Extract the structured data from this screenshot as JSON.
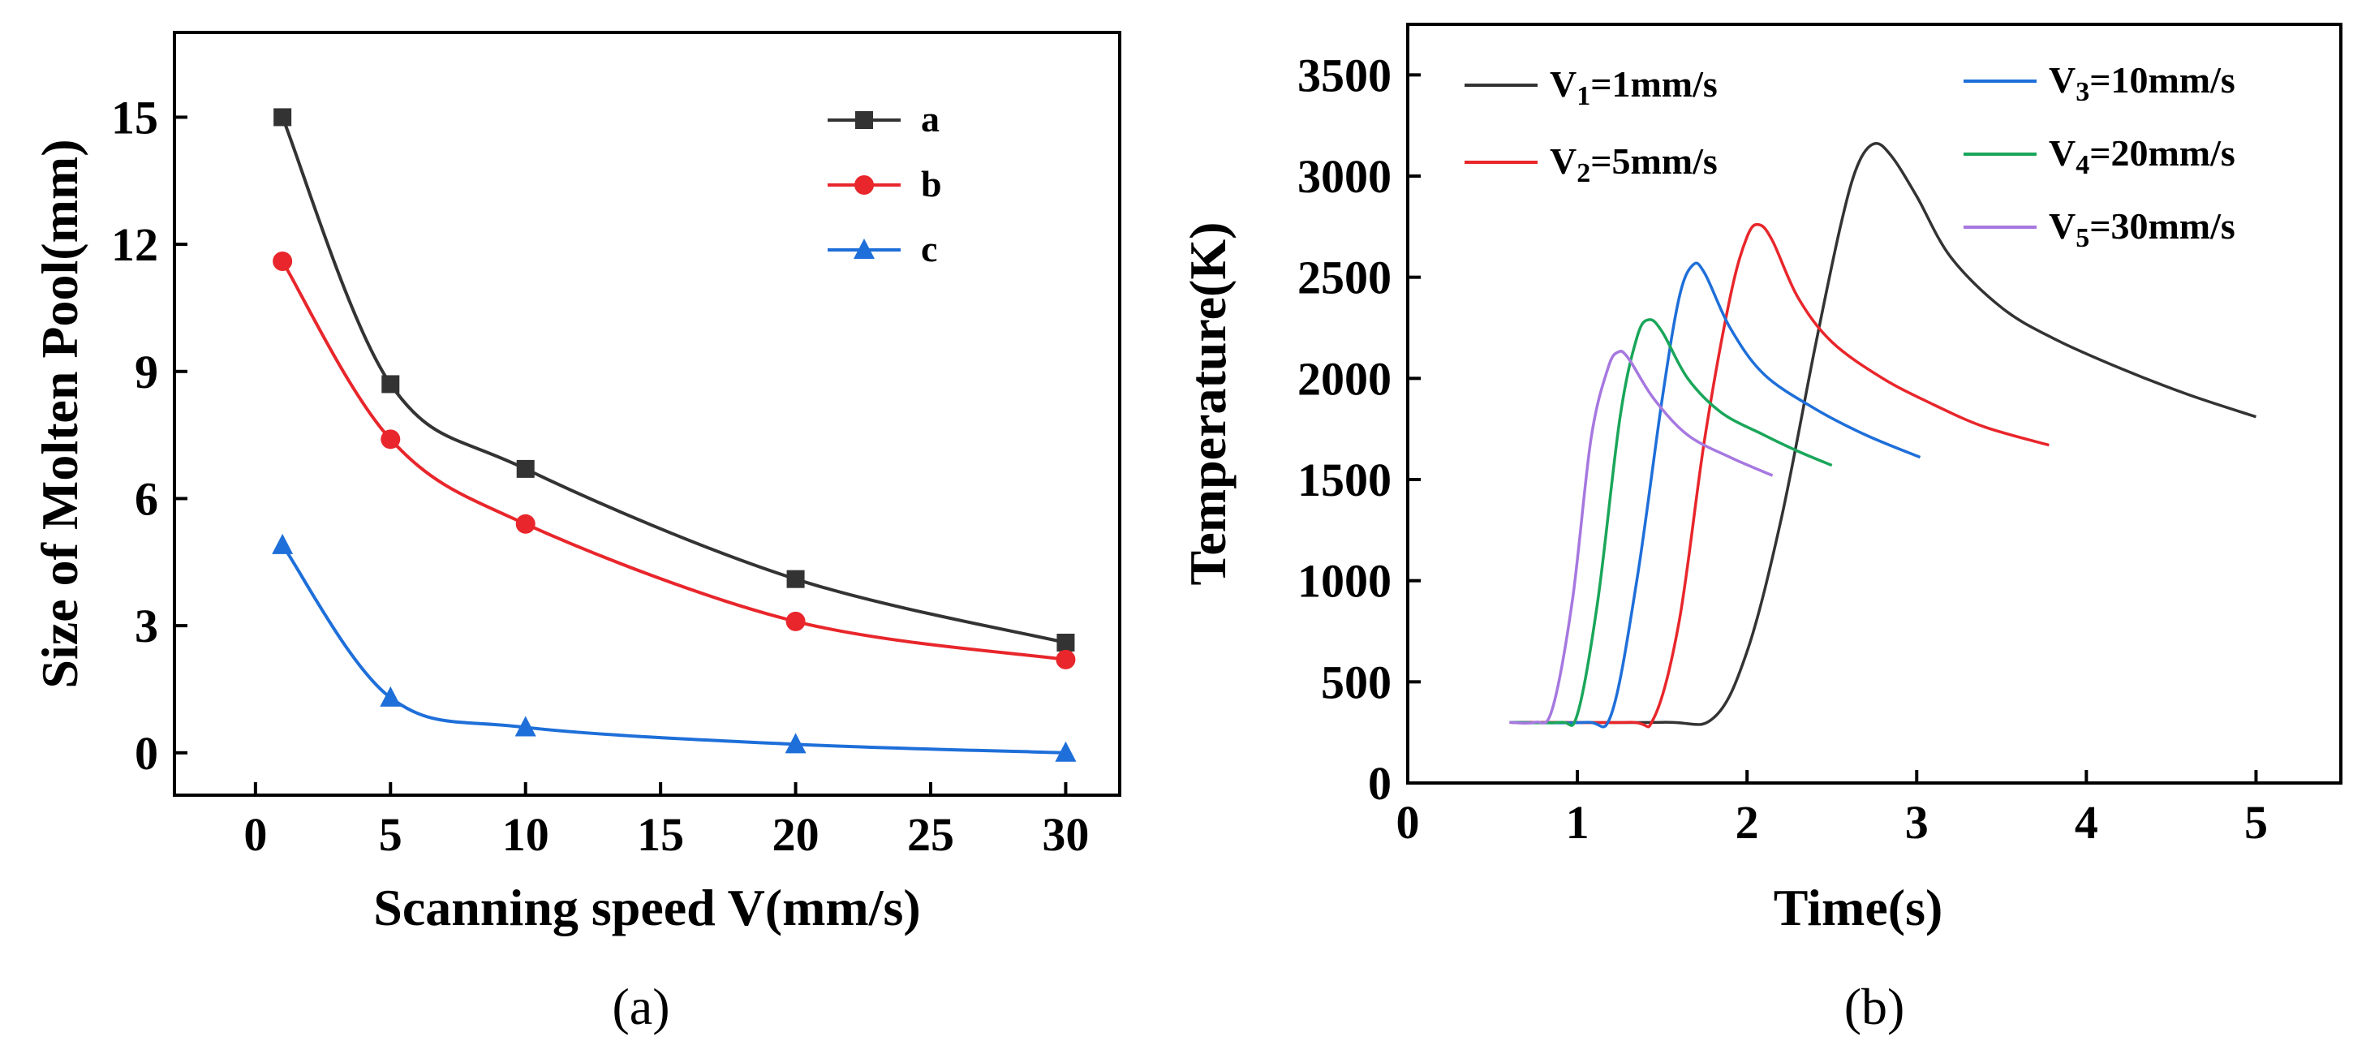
{
  "chart_data": [
    {
      "type": "line",
      "panel_label": "(a)",
      "xlabel": "Scanning speed  V(mm/s)",
      "ylabel": "Size of Molten Pool(mm)",
      "xlim": [
        -3,
        32
      ],
      "ylim": [
        -1,
        17
      ],
      "x_ticks": [
        0,
        5,
        10,
        15,
        20,
        25,
        30
      ],
      "y_ticks": [
        0,
        3,
        6,
        9,
        12,
        15
      ],
      "legend_position": "top-right",
      "grid": false,
      "x": [
        1,
        5,
        10,
        20,
        30
      ],
      "series": [
        {
          "name": "a",
          "color": "#333333",
          "marker": "square",
          "values": [
            15.0,
            8.7,
            6.7,
            4.1,
            2.6
          ]
        },
        {
          "name": "b",
          "color": "#e8262b",
          "marker": "circle",
          "values": [
            11.6,
            7.4,
            5.4,
            3.1,
            2.2
          ]
        },
        {
          "name": "c",
          "color": "#1e6fd9",
          "marker": "triangle",
          "values": [
            4.9,
            1.3,
            0.6,
            0.2,
            0.0
          ]
        }
      ]
    },
    {
      "type": "line",
      "panel_label": "(b)",
      "xlabel": "Time(s)",
      "ylabel": "Temperature(K)",
      "xlim": [
        0,
        5.5
      ],
      "ylim": [
        0,
        3750
      ],
      "x_ticks": [
        0,
        1,
        2,
        3,
        4,
        5
      ],
      "y_ticks": [
        0,
        500,
        1000,
        1500,
        2000,
        2500,
        3000,
        3500
      ],
      "legend_position": "top",
      "grid": false,
      "series": [
        {
          "name": "V1=1mm/s",
          "name_base": "V",
          "name_sub": "1",
          "name_rest": "=1mm/s",
          "color": "#333333",
          "points": [
            [
              0.6,
              300
            ],
            [
              1.5,
              300
            ],
            [
              1.8,
              320
            ],
            [
              2.0,
              650
            ],
            [
              2.2,
              1300
            ],
            [
              2.4,
              2150
            ],
            [
              2.55,
              2750
            ],
            [
              2.65,
              3050
            ],
            [
              2.75,
              3160
            ],
            [
              2.85,
              3100
            ],
            [
              3.0,
              2900
            ],
            [
              3.2,
              2600
            ],
            [
              3.5,
              2350
            ],
            [
              3.8,
              2200
            ],
            [
              4.2,
              2050
            ],
            [
              4.6,
              1920
            ],
            [
              5.0,
              1810
            ]
          ]
        },
        {
          "name": "V2=5mm/s",
          "name_base": "V",
          "name_sub": "2",
          "name_rest": "=5mm/s",
          "color": "#e8262b",
          "points": [
            [
              0.6,
              300
            ],
            [
              1.3,
              300
            ],
            [
              1.45,
              320
            ],
            [
              1.6,
              800
            ],
            [
              1.75,
              1700
            ],
            [
              1.9,
              2400
            ],
            [
              2.0,
              2700
            ],
            [
              2.07,
              2760
            ],
            [
              2.15,
              2680
            ],
            [
              2.3,
              2400
            ],
            [
              2.5,
              2180
            ],
            [
              2.8,
              2000
            ],
            [
              3.1,
              1870
            ],
            [
              3.4,
              1760
            ],
            [
              3.78,
              1670
            ]
          ]
        },
        {
          "name": "V3=10mm/s",
          "name_base": "V",
          "name_sub": "3",
          "name_rest": "=10mm/s",
          "color": "#1e6fd9",
          "points": [
            [
              0.6,
              300
            ],
            [
              1.05,
              300
            ],
            [
              1.2,
              340
            ],
            [
              1.35,
              1000
            ],
            [
              1.5,
              1900
            ],
            [
              1.6,
              2400
            ],
            [
              1.68,
              2560
            ],
            [
              1.75,
              2520
            ],
            [
              1.9,
              2250
            ],
            [
              2.1,
              2020
            ],
            [
              2.4,
              1850
            ],
            [
              2.7,
              1720
            ],
            [
              3.02,
              1610
            ]
          ]
        },
        {
          "name": "V4=20mm/s",
          "name_base": "V",
          "name_sub": "4",
          "name_rest": "=20mm/s",
          "color": "#1aa65a",
          "points": [
            [
              0.6,
              300
            ],
            [
              0.9,
              300
            ],
            [
              1.0,
              340
            ],
            [
              1.12,
              900
            ],
            [
              1.25,
              1800
            ],
            [
              1.35,
              2200
            ],
            [
              1.42,
              2290
            ],
            [
              1.5,
              2230
            ],
            [
              1.65,
              2000
            ],
            [
              1.85,
              1830
            ],
            [
              2.1,
              1720
            ],
            [
              2.3,
              1640
            ],
            [
              2.5,
              1570
            ]
          ]
        },
        {
          "name": "V5=30mm/s",
          "name_base": "V",
          "name_sub": "5",
          "name_rest": "=30mm/s",
          "color": "#a678e0",
          "points": [
            [
              0.6,
              300
            ],
            [
              0.75,
              300
            ],
            [
              0.85,
              360
            ],
            [
              0.97,
              900
            ],
            [
              1.08,
              1700
            ],
            [
              1.18,
              2050
            ],
            [
              1.24,
              2130
            ],
            [
              1.3,
              2100
            ],
            [
              1.45,
              1900
            ],
            [
              1.65,
              1720
            ],
            [
              1.9,
              1610
            ],
            [
              2.15,
              1520
            ]
          ]
        }
      ]
    }
  ]
}
